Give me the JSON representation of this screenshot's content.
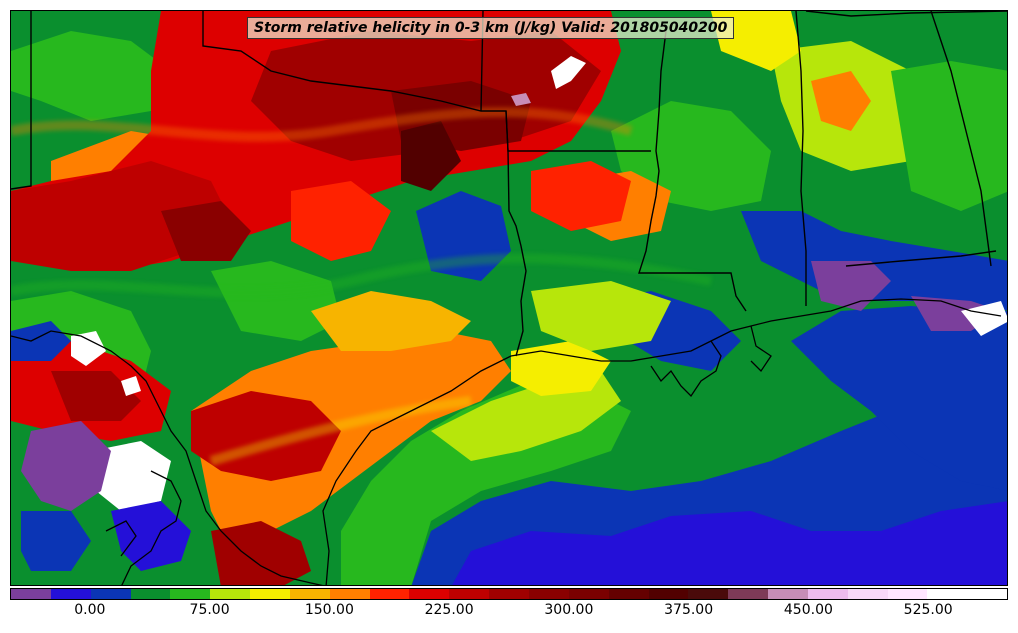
{
  "title": "Storm relative helicity in 0-3 km (J/kg) Valid: 201805040200",
  "legend": {
    "tick_labels": [
      "0.00",
      "75.00",
      "150.00",
      "225.00",
      "300.00",
      "375.00",
      "450.00",
      "525.00"
    ],
    "tick_values": [
      0,
      75,
      150,
      225,
      300,
      375,
      450,
      525
    ],
    "min": -50,
    "max": 575,
    "step": 25,
    "colors": [
      "#7b3f9c",
      "#2410d8",
      "#0b35b5",
      "#0a8f2e",
      "#27b81e",
      "#b7e60b",
      "#f5ee00",
      "#f7b400",
      "#ff7f00",
      "#ff2200",
      "#dd0000",
      "#be0000",
      "#a00000",
      "#8a0000",
      "#7a0000",
      "#650000",
      "#520000",
      "#4a0a0a",
      "#7e3a57",
      "#c78db7",
      "#eebbee",
      "#f8d8f8",
      "#ffe6ff",
      "#ffffff",
      "#ffffff"
    ]
  },
  "map": {
    "region": "Southern Plains, Gulf Coast and Gulf of Mexico",
    "field": "0-3 km storm relative helicity"
  }
}
